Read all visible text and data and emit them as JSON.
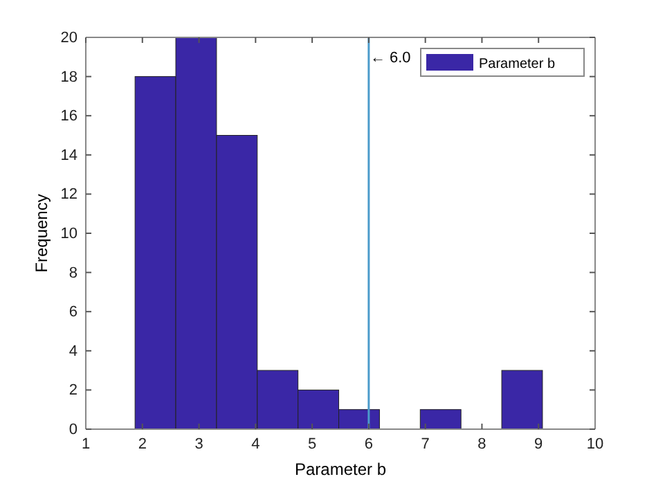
{
  "chart_data": {
    "type": "histogram",
    "xlabel": "Parameter b",
    "ylabel": "Frequency",
    "bins": [
      1.87,
      2.59,
      3.31,
      4.03,
      4.75,
      5.47,
      6.19,
      6.91,
      7.63,
      8.35,
      9.07
    ],
    "series": [
      {
        "name": "Parameter b",
        "color": "#3a27a6",
        "values": [
          18,
          20,
          15,
          3,
          2,
          1,
          0,
          1,
          0,
          3
        ]
      }
    ],
    "xlim": [
      1,
      10
    ],
    "xticks": [
      1,
      2,
      3,
      4,
      5,
      6,
      7,
      8,
      9,
      10
    ],
    "ylim": [
      0,
      20
    ],
    "yticks": [
      0,
      2,
      4,
      6,
      8,
      10,
      12,
      14,
      16,
      18,
      20
    ],
    "ref_lines": [
      {
        "axis": "x",
        "value": 6,
        "label": "← 6.0",
        "color": "#4b9bcb"
      }
    ],
    "legend": "top right",
    "grid": false
  }
}
